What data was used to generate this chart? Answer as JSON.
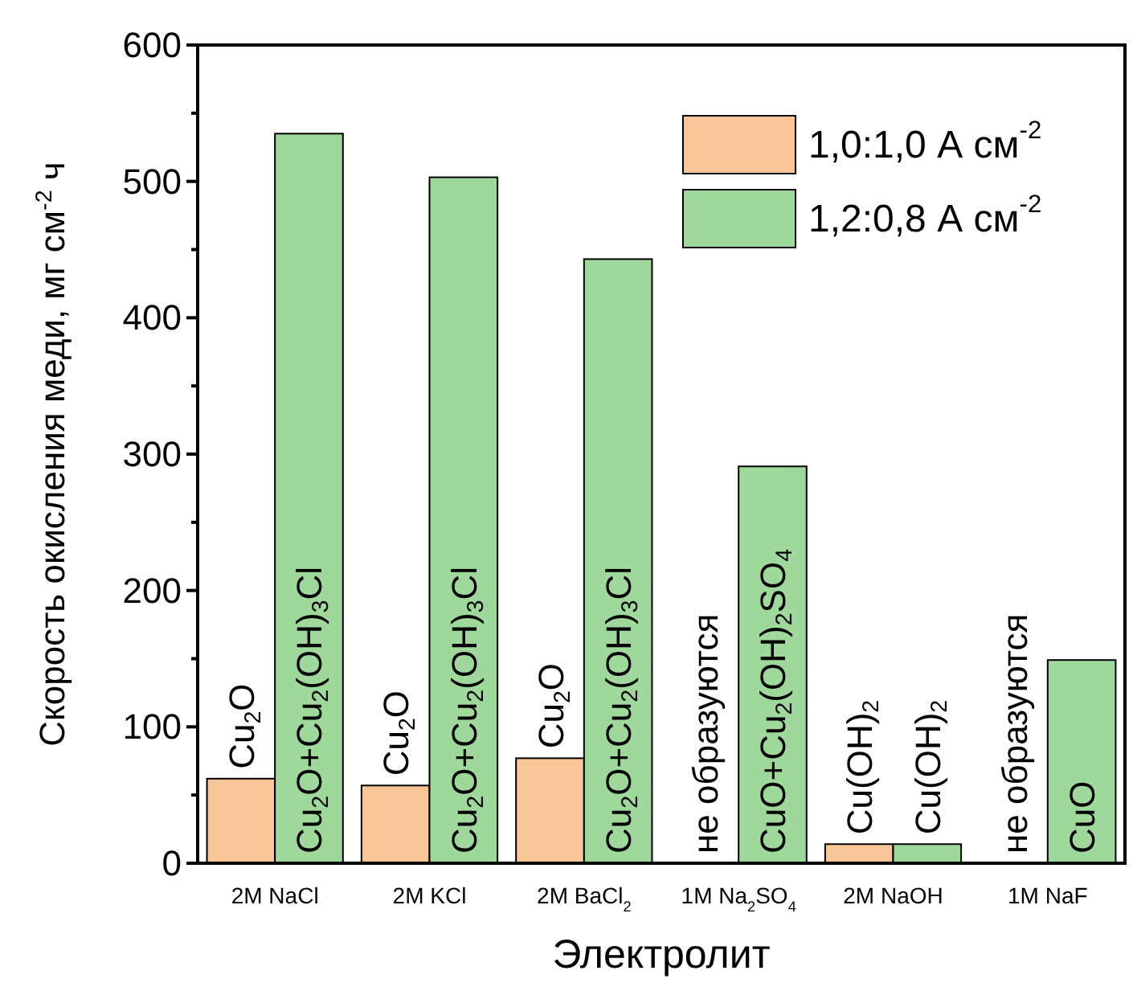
{
  "chart_data": {
    "type": "bar",
    "xlabel": "Электролит",
    "ylabel": "Скорость окисления меди, мг см$^{-2}$ ч",
    "categories": [
      "2M NaCl",
      "2M KCl",
      "2M BaCl$_{2}$",
      "1M Na$_{2}$SO$_{4}$",
      "2M NaOH",
      "1M NaF"
    ],
    "series": [
      {
        "name": "1,0:1,0 А см$^{-2}$",
        "color": "#f9c698",
        "values": [
          62,
          57,
          77,
          null,
          14,
          null
        ]
      },
      {
        "name": "1,2:0,8 А см$^{-2}$",
        "color": "#9ed99b",
        "values": [
          535,
          503,
          443,
          291,
          14,
          149
        ]
      }
    ],
    "ylim": [
      0,
      600
    ],
    "yticks": [
      0,
      {
        "value": 50,
        "label": null
      },
      100,
      {
        "value": 150,
        "label": null
      },
      200,
      {
        "value": 250,
        "label": null
      },
      300,
      {
        "value": 350,
        "label": null
      },
      400,
      {
        "value": 450,
        "label": null
      },
      500,
      {
        "value": 550,
        "label": null
      },
      600
    ],
    "legend": "top right",
    "annotations": [
      {
        "text": "Cu$_{2}$O",
        "x": "2M NaCl",
        "y": 62
      },
      {
        "text": "Cu$_{2}$O+Cu$_{2}$(OH)$_{3}$Cl",
        "x": "2M NaCl",
        "y": 0
      },
      {
        "text": "Cu$_{2}$O",
        "x": "2M KCl",
        "y": 57
      },
      {
        "text": "Cu$_{2}$O+Cu$_{2}$(OH)$_{3}$Cl",
        "x": "2M KCl",
        "y": 0
      },
      {
        "text": "Cu$_{2}$O",
        "x": "2M BaCl$_{2}$",
        "y": 77
      },
      {
        "text": "Cu$_{2}$O+Cu$_{2}$(OH)$_{3}$Cl",
        "x": "2M BaCl$_{2}$",
        "y": 0
      },
      {
        "text": "не образуются",
        "x": "1M Na$_{2}$SO$_{4}$",
        "y": 0
      },
      {
        "text": "CuO+Cu$_{2}$(OH)$_{2}$SO$_{4}$",
        "x": "1M Na$_{2}$SO$_{4}$",
        "y": 0
      },
      {
        "text": "Cu(OH)$_{2}$",
        "x": "2M NaOH",
        "y": 14
      },
      {
        "text": "Cu(OH)$_{2}$",
        "x": "2M NaOH",
        "y": 14
      },
      {
        "text": "не образуются",
        "x": "1M NaF",
        "y": 0
      },
      {
        "text": "CuO",
        "x": "1M NaF",
        "y": 0
      }
    ]
  }
}
